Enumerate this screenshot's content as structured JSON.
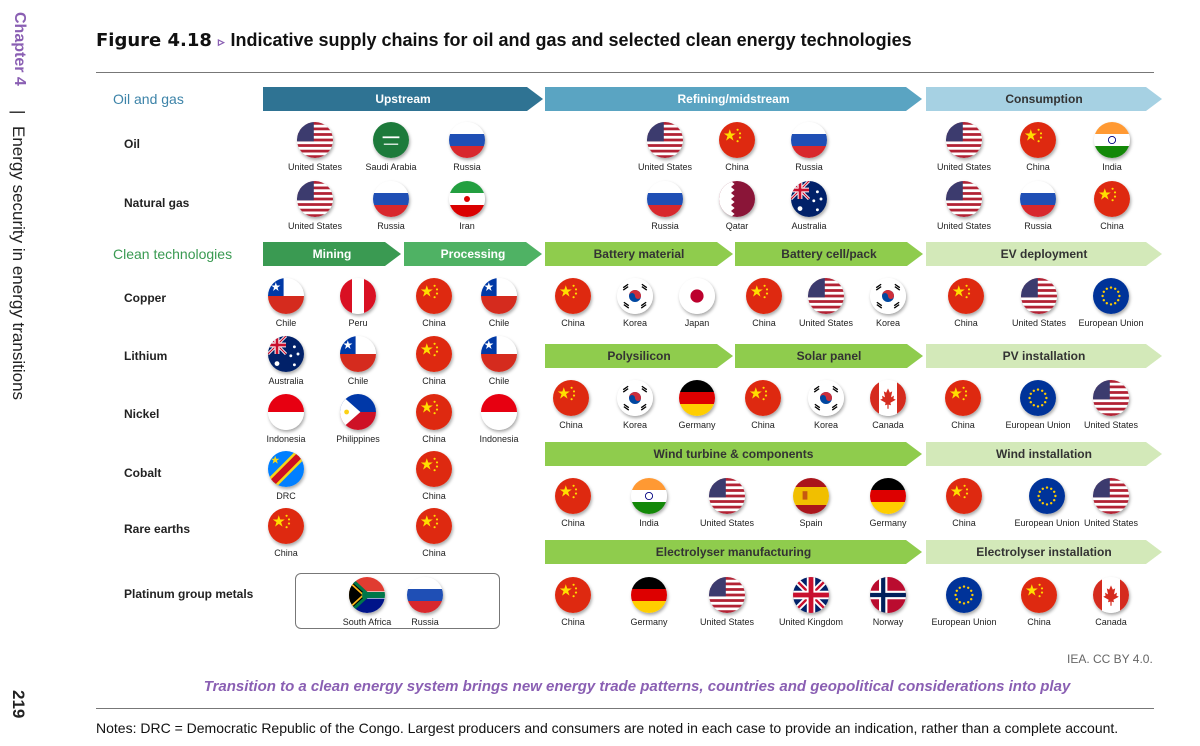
{
  "sidebar": {
    "chapter": "Chapter 4",
    "separator": "|",
    "section": "Energy security in energy transitions",
    "page_number": "219"
  },
  "figure": {
    "number": "Figure 4.18",
    "marker": "▹",
    "title": "Indicative supply chains for oil and gas and selected clean energy technologies"
  },
  "sections": {
    "oil_gas": "Oil and gas",
    "clean": "Clean technologies"
  },
  "arrows": {
    "upstream": "Upstream",
    "refining": "Refining/midstream",
    "consumption": "Consumption",
    "mining": "Mining",
    "processing": "Processing",
    "battery_material": "Battery material",
    "battery_cell": "Battery cell/pack",
    "ev": "EV deployment",
    "polysilicon": "Polysilicon",
    "solar_panel": "Solar panel",
    "pv": "PV installation",
    "wind_turbine": "Wind turbine & components",
    "wind_install": "Wind installation",
    "electrolyser_mfg": "Electrolyser manufacturing",
    "electrolyser_install": "Electrolyser installation"
  },
  "rows": {
    "oil": "Oil",
    "natural_gas": "Natural gas",
    "copper": "Copper",
    "lithium": "Lithium",
    "nickel": "Nickel",
    "cobalt": "Cobalt",
    "rare_earths": "Rare earths",
    "pgm": "Platinum group metals"
  },
  "countries": {
    "oil": {
      "upstream": [
        "United States",
        "Saudi Arabia",
        "Russia"
      ],
      "refining": [
        "United States",
        "China",
        "Russia"
      ],
      "consumption": [
        "United States",
        "China",
        "India"
      ]
    },
    "natural_gas": {
      "upstream": [
        "United States",
        "Russia",
        "Iran"
      ],
      "refining": [
        "Russia",
        "Qatar",
        "Australia"
      ],
      "consumption": [
        "United States",
        "Russia",
        "China"
      ]
    },
    "copper": {
      "mining": [
        "Chile",
        "Peru"
      ],
      "processing": [
        "China",
        "Chile"
      ],
      "battery_material": [
        "China",
        "Korea",
        "Japan"
      ],
      "battery_cell": [
        "China",
        "United States",
        "Korea"
      ],
      "ev": [
        "China",
        "United States",
        "European Union"
      ]
    },
    "lithium": {
      "mining": [
        "Australia",
        "Chile"
      ],
      "processing": [
        "China",
        "Chile"
      ]
    },
    "polysilicon": [
      "China",
      "Korea",
      "Germany"
    ],
    "solar_panel": [
      "China",
      "Korea",
      "Canada"
    ],
    "pv": [
      "China",
      "European Union",
      "United States"
    ],
    "nickel": {
      "mining": [
        "Indonesia",
        "Philippines"
      ],
      "processing": [
        "China",
        "Indonesia"
      ]
    },
    "cobalt": {
      "mining": [
        "DRC"
      ],
      "processing": [
        "China"
      ]
    },
    "wind_turbine": [
      "China",
      "India",
      "United States",
      "Spain",
      "Germany"
    ],
    "wind_install": [
      "China",
      "European Union",
      "United States"
    ],
    "rare_earths": {
      "mining": [
        "China"
      ],
      "processing": [
        "China"
      ]
    },
    "pgm": [
      "South Africa",
      "Russia"
    ],
    "electrolyser_mfg": [
      "China",
      "Germany",
      "United States",
      "United Kingdom",
      "Norway"
    ],
    "electrolyser_install": [
      "European Union",
      "China",
      "Canada"
    ]
  },
  "flag_icons": {
    "United States": "us-flag-icon",
    "Saudi Arabia": "saudi-arabia-flag-icon",
    "Russia": "russia-flag-icon",
    "China": "china-flag-icon",
    "India": "india-flag-icon",
    "Iran": "iran-flag-icon",
    "Qatar": "qatar-flag-icon",
    "Australia": "australia-flag-icon",
    "Chile": "chile-flag-icon",
    "Peru": "peru-flag-icon",
    "Korea": "korea-flag-icon",
    "Japan": "japan-flag-icon",
    "European Union": "eu-flag-icon",
    "Germany": "germany-flag-icon",
    "Canada": "canada-flag-icon",
    "Indonesia": "indonesia-flag-icon",
    "Philippines": "philippines-flag-icon",
    "DRC": "drc-flag-icon",
    "Spain": "spain-flag-icon",
    "South Africa": "south-africa-flag-icon",
    "United Kingdom": "uk-flag-icon",
    "Norway": "norway-flag-icon"
  },
  "colors": {
    "upstream": "#2f7393",
    "refining": "#5aa4c2",
    "consumption": "#a6d1e3",
    "mining": "#3a9a52",
    "processing": "#4fb264",
    "mid_green": "#8fcc4d",
    "light_green": "#d3e9b9",
    "section_blue": "#3c83a8",
    "section_green": "#3a9a52",
    "accent_purple": "#8a5fb3"
  },
  "credit": "IEA. CC BY 4.0.",
  "takeaway": "Transition to a clean energy system brings new energy trade patterns, countries and geopolitical considerations into play",
  "notes": "Notes: DRC = Democratic Republic of the Congo. Largest producers and consumers are noted in each case to provide an indication, rather than a complete account."
}
